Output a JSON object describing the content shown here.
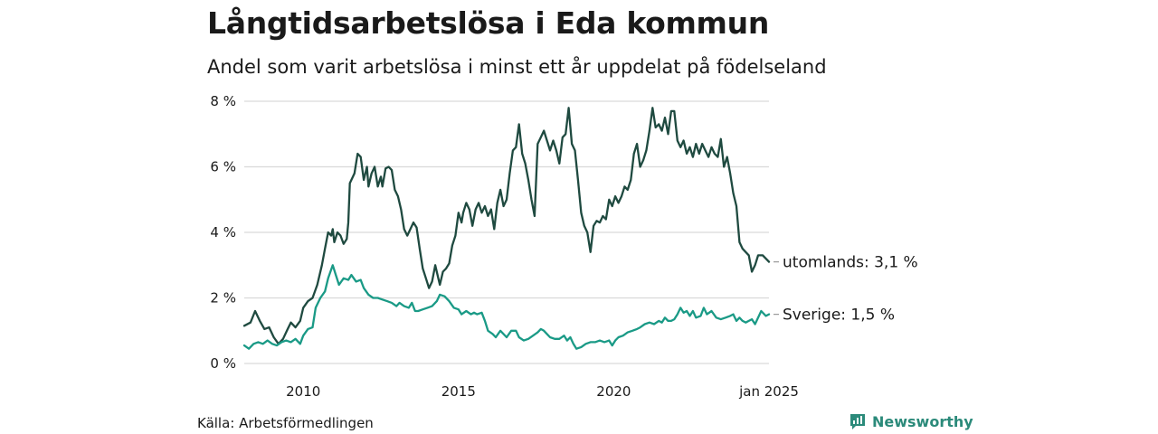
{
  "title": "Långtidsarbetslösa i Eda kommun",
  "subtitle": "Andel som varit arbetslösa i minst ett år uppdelat på födelseland",
  "source": "Källa: Arbetsförmedlingen",
  "brand": "Newsworthy",
  "colors": {
    "utomlands": "#1f4a40",
    "sverige": "#1a9a86",
    "grid": "#d9d9d9",
    "brand": "#2b8a7a"
  },
  "chart_data": {
    "type": "line",
    "title": "Långtidsarbetslösa i Eda kommun",
    "subtitle": "Andel som varit arbetslösa i minst ett år uppdelat på födelseland",
    "ylabel": "",
    "xlabel": "",
    "ylim": [
      0,
      8
    ],
    "xlim": [
      2008.1,
      2025.0
    ],
    "y_ticks": [
      0,
      2,
      4,
      6,
      8
    ],
    "y_tick_labels": [
      "0 %",
      "2 %",
      "4 %",
      "6 %",
      "8 %"
    ],
    "x_ticks": [
      2010,
      2015,
      2020,
      2025.0
    ],
    "x_tick_labels": [
      "2010",
      "2015",
      "2020",
      "jan 2025"
    ],
    "series": [
      {
        "name": "utomlands",
        "end_label": "utomlands: 3,1 %",
        "points": [
          [
            2008.1,
            1.15
          ],
          [
            2008.3,
            1.25
          ],
          [
            2008.45,
            1.6
          ],
          [
            2008.6,
            1.3
          ],
          [
            2008.75,
            1.05
          ],
          [
            2008.9,
            1.1
          ],
          [
            2009.05,
            0.8
          ],
          [
            2009.2,
            0.6
          ],
          [
            2009.35,
            0.75
          ],
          [
            2009.5,
            1.05
          ],
          [
            2009.6,
            1.25
          ],
          [
            2009.75,
            1.1
          ],
          [
            2009.9,
            1.3
          ],
          [
            2010.0,
            1.7
          ],
          [
            2010.15,
            1.9
          ],
          [
            2010.3,
            2.0
          ],
          [
            2010.45,
            2.4
          ],
          [
            2010.6,
            3.0
          ],
          [
            2010.7,
            3.5
          ],
          [
            2010.8,
            4.0
          ],
          [
            2010.9,
            3.9
          ],
          [
            2010.95,
            4.1
          ],
          [
            2011.0,
            3.7
          ],
          [
            2011.1,
            4.0
          ],
          [
            2011.2,
            3.9
          ],
          [
            2011.3,
            3.65
          ],
          [
            2011.4,
            3.8
          ],
          [
            2011.45,
            4.3
          ],
          [
            2011.5,
            5.5
          ],
          [
            2011.65,
            5.8
          ],
          [
            2011.75,
            6.4
          ],
          [
            2011.85,
            6.3
          ],
          [
            2011.95,
            5.6
          ],
          [
            2012.05,
            6.0
          ],
          [
            2012.1,
            5.4
          ],
          [
            2012.2,
            5.8
          ],
          [
            2012.3,
            6.0
          ],
          [
            2012.4,
            5.4
          ],
          [
            2012.5,
            5.7
          ],
          [
            2012.55,
            5.4
          ],
          [
            2012.65,
            5.95
          ],
          [
            2012.75,
            6.0
          ],
          [
            2012.85,
            5.9
          ],
          [
            2012.95,
            5.3
          ],
          [
            2013.05,
            5.1
          ],
          [
            2013.15,
            4.7
          ],
          [
            2013.25,
            4.1
          ],
          [
            2013.35,
            3.9
          ],
          [
            2013.45,
            4.1
          ],
          [
            2013.55,
            4.3
          ],
          [
            2013.65,
            4.15
          ],
          [
            2013.75,
            3.5
          ],
          [
            2013.85,
            2.9
          ],
          [
            2013.95,
            2.6
          ],
          [
            2014.05,
            2.3
          ],
          [
            2014.15,
            2.5
          ],
          [
            2014.25,
            3.0
          ],
          [
            2014.35,
            2.6
          ],
          [
            2014.4,
            2.4
          ],
          [
            2014.5,
            2.8
          ],
          [
            2014.6,
            2.9
          ],
          [
            2014.7,
            3.05
          ],
          [
            2014.8,
            3.6
          ],
          [
            2014.9,
            3.9
          ],
          [
            2015.0,
            4.6
          ],
          [
            2015.1,
            4.3
          ],
          [
            2015.15,
            4.6
          ],
          [
            2015.25,
            4.9
          ],
          [
            2015.35,
            4.7
          ],
          [
            2015.45,
            4.2
          ],
          [
            2015.55,
            4.7
          ],
          [
            2015.65,
            4.9
          ],
          [
            2015.75,
            4.6
          ],
          [
            2015.85,
            4.8
          ],
          [
            2015.95,
            4.5
          ],
          [
            2016.05,
            4.7
          ],
          [
            2016.15,
            4.1
          ],
          [
            2016.25,
            4.9
          ],
          [
            2016.35,
            5.3
          ],
          [
            2016.45,
            4.8
          ],
          [
            2016.55,
            5.0
          ],
          [
            2016.65,
            5.8
          ],
          [
            2016.75,
            6.5
          ],
          [
            2016.85,
            6.6
          ],
          [
            2016.95,
            7.3
          ],
          [
            2017.05,
            6.4
          ],
          [
            2017.15,
            6.1
          ],
          [
            2017.25,
            5.6
          ],
          [
            2017.35,
            5.0
          ],
          [
            2017.45,
            4.5
          ],
          [
            2017.55,
            6.7
          ],
          [
            2017.65,
            6.9
          ],
          [
            2017.75,
            7.1
          ],
          [
            2017.85,
            6.8
          ],
          [
            2017.95,
            6.5
          ],
          [
            2018.05,
            6.8
          ],
          [
            2018.15,
            6.5
          ],
          [
            2018.25,
            6.1
          ],
          [
            2018.35,
            6.9
          ],
          [
            2018.45,
            7.0
          ],
          [
            2018.55,
            7.8
          ],
          [
            2018.65,
            6.7
          ],
          [
            2018.75,
            6.5
          ],
          [
            2018.85,
            5.6
          ],
          [
            2018.95,
            4.6
          ],
          [
            2019.05,
            4.2
          ],
          [
            2019.15,
            4.0
          ],
          [
            2019.25,
            3.4
          ],
          [
            2019.35,
            4.2
          ],
          [
            2019.45,
            4.35
          ],
          [
            2019.55,
            4.3
          ],
          [
            2019.65,
            4.5
          ],
          [
            2019.75,
            4.4
          ],
          [
            2019.85,
            5.0
          ],
          [
            2019.95,
            4.8
          ],
          [
            2020.05,
            5.1
          ],
          [
            2020.15,
            4.9
          ],
          [
            2020.25,
            5.1
          ],
          [
            2020.35,
            5.4
          ],
          [
            2020.45,
            5.3
          ],
          [
            2020.55,
            5.6
          ],
          [
            2020.65,
            6.4
          ],
          [
            2020.75,
            6.7
          ],
          [
            2020.85,
            6.0
          ],
          [
            2020.95,
            6.2
          ],
          [
            2021.05,
            6.5
          ],
          [
            2021.15,
            7.1
          ],
          [
            2021.25,
            7.8
          ],
          [
            2021.35,
            7.2
          ],
          [
            2021.45,
            7.3
          ],
          [
            2021.55,
            7.1
          ],
          [
            2021.65,
            7.5
          ],
          [
            2021.75,
            7.0
          ],
          [
            2021.85,
            7.7
          ],
          [
            2021.95,
            7.7
          ],
          [
            2022.05,
            6.8
          ],
          [
            2022.15,
            6.6
          ],
          [
            2022.25,
            6.8
          ],
          [
            2022.35,
            6.4
          ],
          [
            2022.45,
            6.6
          ],
          [
            2022.55,
            6.3
          ],
          [
            2022.65,
            6.7
          ],
          [
            2022.75,
            6.4
          ],
          [
            2022.85,
            6.7
          ],
          [
            2022.95,
            6.5
          ],
          [
            2023.05,
            6.3
          ],
          [
            2023.15,
            6.6
          ],
          [
            2023.25,
            6.4
          ],
          [
            2023.35,
            6.3
          ],
          [
            2023.45,
            6.85
          ],
          [
            2023.55,
            6.0
          ],
          [
            2023.65,
            6.3
          ],
          [
            2023.75,
            5.8
          ],
          [
            2023.85,
            5.2
          ],
          [
            2023.95,
            4.8
          ],
          [
            2024.05,
            3.7
          ],
          [
            2024.15,
            3.5
          ],
          [
            2024.25,
            3.4
          ],
          [
            2024.35,
            3.3
          ],
          [
            2024.45,
            2.8
          ],
          [
            2024.55,
            3.0
          ],
          [
            2024.65,
            3.3
          ],
          [
            2024.8,
            3.3
          ],
          [
            2025.0,
            3.1
          ]
        ]
      },
      {
        "name": "Sverige",
        "end_label": "Sverige: 1,5 %",
        "points": [
          [
            2008.1,
            0.55
          ],
          [
            2008.25,
            0.45
          ],
          [
            2008.4,
            0.6
          ],
          [
            2008.55,
            0.65
          ],
          [
            2008.7,
            0.6
          ],
          [
            2008.85,
            0.7
          ],
          [
            2009.0,
            0.6
          ],
          [
            2009.15,
            0.55
          ],
          [
            2009.3,
            0.65
          ],
          [
            2009.45,
            0.7
          ],
          [
            2009.6,
            0.65
          ],
          [
            2009.75,
            0.75
          ],
          [
            2009.9,
            0.6
          ],
          [
            2010.0,
            0.85
          ],
          [
            2010.15,
            1.05
          ],
          [
            2010.3,
            1.1
          ],
          [
            2010.4,
            1.7
          ],
          [
            2010.55,
            2.0
          ],
          [
            2010.7,
            2.2
          ],
          [
            2010.8,
            2.6
          ],
          [
            2010.95,
            3.0
          ],
          [
            2011.05,
            2.7
          ],
          [
            2011.15,
            2.4
          ],
          [
            2011.3,
            2.6
          ],
          [
            2011.45,
            2.55
          ],
          [
            2011.55,
            2.7
          ],
          [
            2011.7,
            2.5
          ],
          [
            2011.85,
            2.55
          ],
          [
            2011.95,
            2.3
          ],
          [
            2012.1,
            2.1
          ],
          [
            2012.25,
            2.0
          ],
          [
            2012.4,
            2.0
          ],
          [
            2012.55,
            1.95
          ],
          [
            2012.7,
            1.9
          ],
          [
            2012.85,
            1.85
          ],
          [
            2013.0,
            1.75
          ],
          [
            2013.1,
            1.85
          ],
          [
            2013.25,
            1.75
          ],
          [
            2013.4,
            1.7
          ],
          [
            2013.5,
            1.85
          ],
          [
            2013.6,
            1.6
          ],
          [
            2013.7,
            1.6
          ],
          [
            2013.85,
            1.65
          ],
          [
            2014.0,
            1.7
          ],
          [
            2014.15,
            1.75
          ],
          [
            2014.3,
            1.9
          ],
          [
            2014.4,
            2.1
          ],
          [
            2014.55,
            2.05
          ],
          [
            2014.7,
            1.9
          ],
          [
            2014.85,
            1.7
          ],
          [
            2015.0,
            1.65
          ],
          [
            2015.1,
            1.5
          ],
          [
            2015.25,
            1.6
          ],
          [
            2015.4,
            1.5
          ],
          [
            2015.5,
            1.55
          ],
          [
            2015.6,
            1.5
          ],
          [
            2015.75,
            1.55
          ],
          [
            2015.85,
            1.3
          ],
          [
            2015.95,
            1.0
          ],
          [
            2016.1,
            0.9
          ],
          [
            2016.2,
            0.8
          ],
          [
            2016.35,
            1.0
          ],
          [
            2016.45,
            0.9
          ],
          [
            2016.55,
            0.8
          ],
          [
            2016.7,
            1.0
          ],
          [
            2016.85,
            1.0
          ],
          [
            2016.95,
            0.8
          ],
          [
            2017.1,
            0.7
          ],
          [
            2017.25,
            0.75
          ],
          [
            2017.4,
            0.85
          ],
          [
            2017.55,
            0.95
          ],
          [
            2017.65,
            1.05
          ],
          [
            2017.75,
            1.0
          ],
          [
            2017.85,
            0.9
          ],
          [
            2017.95,
            0.8
          ],
          [
            2018.1,
            0.75
          ],
          [
            2018.25,
            0.75
          ],
          [
            2018.4,
            0.85
          ],
          [
            2018.5,
            0.7
          ],
          [
            2018.6,
            0.8
          ],
          [
            2018.7,
            0.6
          ],
          [
            2018.8,
            0.45
          ],
          [
            2018.95,
            0.5
          ],
          [
            2019.1,
            0.6
          ],
          [
            2019.25,
            0.65
          ],
          [
            2019.4,
            0.65
          ],
          [
            2019.55,
            0.7
          ],
          [
            2019.7,
            0.65
          ],
          [
            2019.85,
            0.7
          ],
          [
            2019.95,
            0.55
          ],
          [
            2020.05,
            0.7
          ],
          [
            2020.15,
            0.8
          ],
          [
            2020.3,
            0.85
          ],
          [
            2020.45,
            0.95
          ],
          [
            2020.6,
            1.0
          ],
          [
            2020.75,
            1.05
          ],
          [
            2020.85,
            1.1
          ],
          [
            2021.0,
            1.2
          ],
          [
            2021.15,
            1.25
          ],
          [
            2021.3,
            1.2
          ],
          [
            2021.45,
            1.3
          ],
          [
            2021.55,
            1.25
          ],
          [
            2021.65,
            1.4
          ],
          [
            2021.75,
            1.3
          ],
          [
            2021.85,
            1.3
          ],
          [
            2021.95,
            1.35
          ],
          [
            2022.05,
            1.5
          ],
          [
            2022.15,
            1.7
          ],
          [
            2022.25,
            1.55
          ],
          [
            2022.35,
            1.6
          ],
          [
            2022.45,
            1.45
          ],
          [
            2022.55,
            1.6
          ],
          [
            2022.65,
            1.4
          ],
          [
            2022.8,
            1.45
          ],
          [
            2022.9,
            1.7
          ],
          [
            2023.0,
            1.5
          ],
          [
            2023.15,
            1.6
          ],
          [
            2023.3,
            1.4
          ],
          [
            2023.45,
            1.35
          ],
          [
            2023.6,
            1.4
          ],
          [
            2023.75,
            1.45
          ],
          [
            2023.85,
            1.5
          ],
          [
            2023.95,
            1.3
          ],
          [
            2024.05,
            1.4
          ],
          [
            2024.15,
            1.3
          ],
          [
            2024.25,
            1.25
          ],
          [
            2024.35,
            1.3
          ],
          [
            2024.45,
            1.35
          ],
          [
            2024.55,
            1.2
          ],
          [
            2024.65,
            1.4
          ],
          [
            2024.75,
            1.6
          ],
          [
            2024.9,
            1.45
          ],
          [
            2025.0,
            1.5
          ]
        ]
      }
    ]
  }
}
